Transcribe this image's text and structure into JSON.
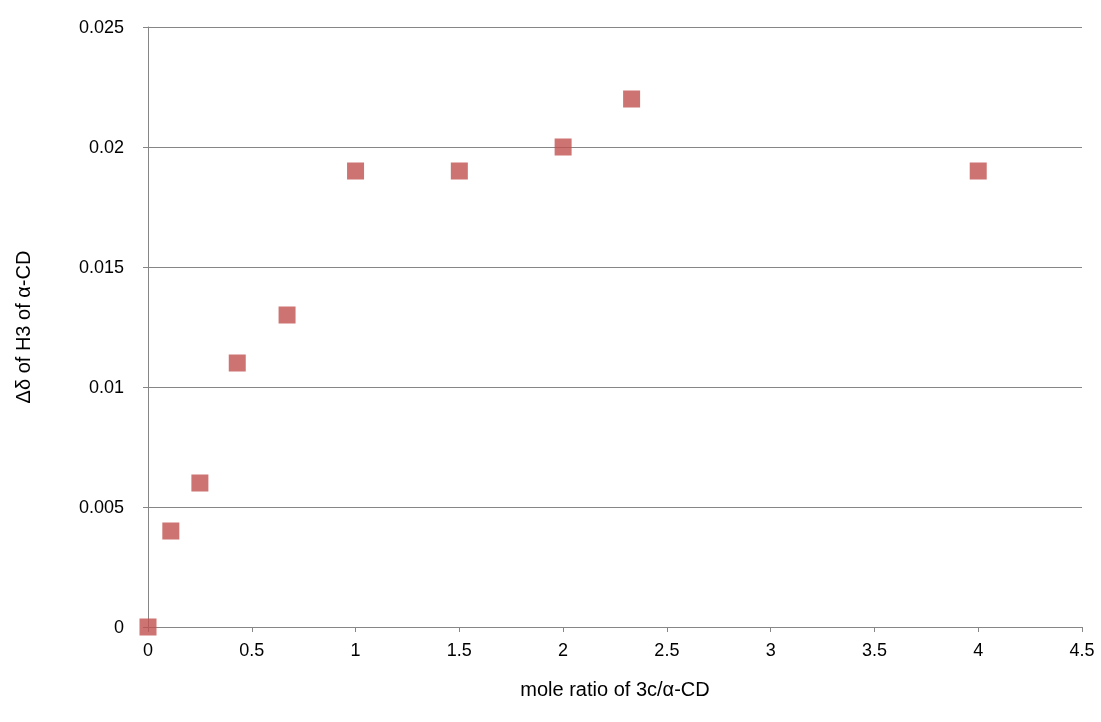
{
  "chart_data": {
    "type": "scatter",
    "xlabel": "mole ratio of 3c/α-CD",
    "ylabel": "Δδ of H3 of α-CD",
    "series": [
      {
        "color": "#c0504d",
        "x": [
          0,
          0.11,
          0.25,
          0.43,
          0.67,
          1,
          1.5,
          2,
          2.33,
          4
        ],
        "values": [
          0,
          0.004,
          0.006,
          0.011,
          0.013,
          0.019,
          0.019,
          0.02,
          0.022,
          0.019
        ]
      }
    ],
    "xlim": [
      0,
      4.5
    ],
    "xticks": [
      0,
      0.5,
      1,
      1.5,
      2,
      2.5,
      3,
      3.5,
      4,
      4.5
    ],
    "ylim": [
      0,
      0.025
    ],
    "yticks": [
      0,
      0.005,
      0.01,
      0.015,
      0.02,
      0.025
    ],
    "grid": "y",
    "marker": "square"
  }
}
